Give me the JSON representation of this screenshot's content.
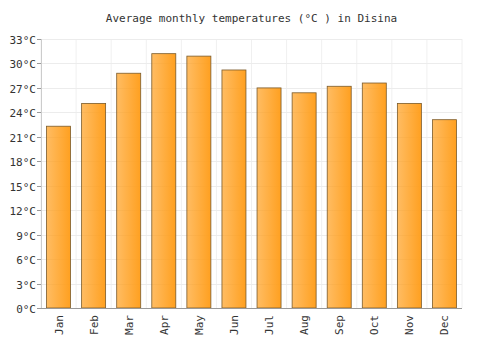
{
  "chart_data": {
    "type": "bar",
    "title": "Average monthly temperatures (°C ) in Disina",
    "categories": [
      "Jan",
      "Feb",
      "Mar",
      "Apr",
      "May",
      "Jun",
      "Jul",
      "Aug",
      "Sep",
      "Oct",
      "Nov",
      "Dec"
    ],
    "values": [
      22.3,
      25.1,
      28.8,
      31.2,
      30.9,
      29.2,
      27.0,
      26.4,
      27.2,
      27.6,
      25.1,
      23.1
    ],
    "color": "#ffa020",
    "ylim": [
      0,
      33
    ],
    "yticks": [
      {
        "value": 0,
        "label": "0°C"
      },
      {
        "value": 3,
        "label": "3°C"
      },
      {
        "value": 6,
        "label": "6°C"
      },
      {
        "value": 9,
        "label": "9°C"
      },
      {
        "value": 12,
        "label": "12°C"
      },
      {
        "value": 15,
        "label": "15°C"
      },
      {
        "value": 18,
        "label": "18°C"
      },
      {
        "value": 21,
        "label": "21°C"
      },
      {
        "value": 24,
        "label": "24°C"
      },
      {
        "value": 27,
        "label": "27°C"
      },
      {
        "value": 30,
        "label": "30°C"
      },
      {
        "value": 33,
        "label": "33°C"
      }
    ],
    "grid": true
  }
}
